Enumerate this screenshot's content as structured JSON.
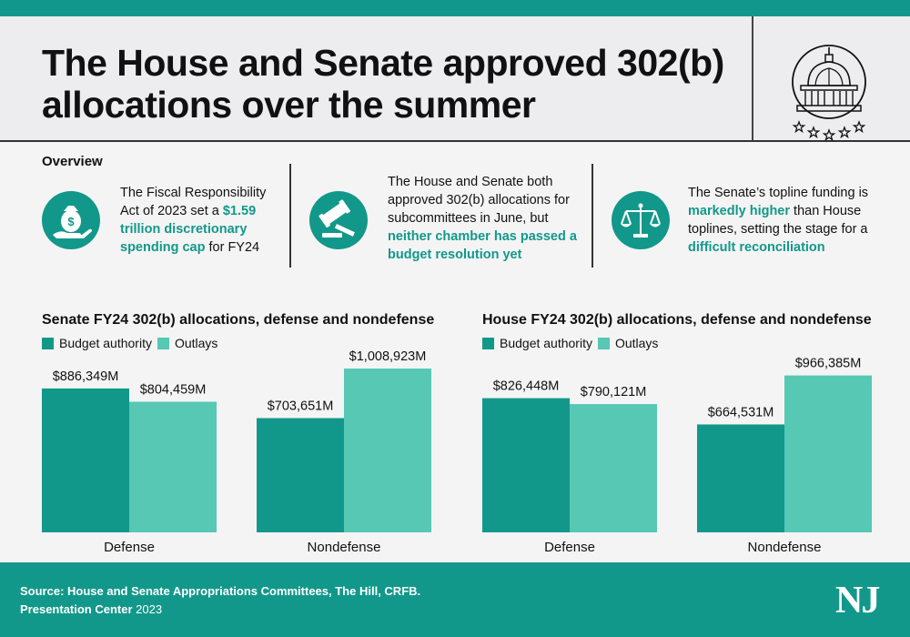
{
  "title": "The House and Senate approved 302(b) allocations over the summer",
  "overview": {
    "heading": "Overview",
    "items": [
      {
        "icon": "money-bag-hand-icon",
        "pre": "The Fiscal Responsibility Act of 2023 set a ",
        "highlight": "$1.59 trillion discretionary spending cap",
        "post": " for FY24"
      },
      {
        "icon": "gavel-icon",
        "pre": "The House and Senate both approved 302(b) allocations for subcommittees in June, but ",
        "highlight": "neither chamber has passed a budget resolution yet",
        "post": ""
      },
      {
        "icon": "scales-icon",
        "pre": "The Senate’s topline funding is ",
        "highlight": "markedly higher",
        "post": " than House toplines, setting the stage for a ",
        "highlight2": "difficult reconciliation"
      }
    ]
  },
  "colors": {
    "budget_authority": "#12988a",
    "outlays": "#56c8b4",
    "accent": "#12988a"
  },
  "chart_data": [
    {
      "type": "bar",
      "title": "Senate FY24 302(b) allocations, defense and nondefense",
      "categories": [
        "Defense",
        "Nondefense"
      ],
      "series": [
        {
          "name": "Budget authority",
          "values": [
            886349,
            703651
          ],
          "labels": [
            "$886,349M",
            "$703,651M"
          ]
        },
        {
          "name": "Outlays",
          "values": [
            804459,
            1008923
          ],
          "labels": [
            "$804,459M",
            "$1,008,923M"
          ]
        }
      ],
      "ylim": [
        0,
        1008923
      ],
      "grid": false,
      "legend": "top-left"
    },
    {
      "type": "bar",
      "title": "House FY24 302(b) allocations, defense and nondefense",
      "categories": [
        "Defense",
        "Nondefense"
      ],
      "series": [
        {
          "name": "Budget authority",
          "values": [
            826448,
            664531
          ],
          "labels": [
            "$826,448M",
            "$664,531M"
          ]
        },
        {
          "name": "Outlays",
          "values": [
            790121,
            966385
          ],
          "labels": [
            "$790,121M",
            "$966,385M"
          ]
        }
      ],
      "ylim": [
        0,
        1008923
      ],
      "grid": false,
      "legend": "top-left"
    }
  ],
  "footer": {
    "source": "Source: House and Senate Appropriations Committees, The Hill, CRFB.",
    "credit": "Presentation Center",
    "year": "2023",
    "logo": "NJ"
  }
}
